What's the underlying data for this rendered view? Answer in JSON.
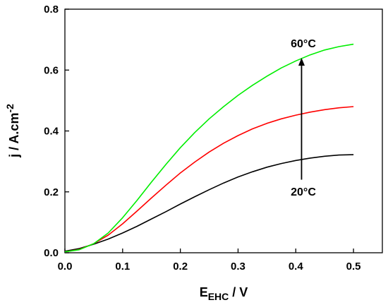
{
  "chart_data": {
    "type": "line",
    "title": "",
    "xlabel": {
      "main": "E",
      "sub": "EHC",
      "tail": " / V"
    },
    "ylabel": {
      "main": "j / A.cm",
      "sup": "-2"
    },
    "xlim": [
      0,
      0.55
    ],
    "ylim": [
      0,
      0.8
    ],
    "xticks": [
      0.0,
      0.1,
      0.2,
      0.3,
      0.4,
      0.5
    ],
    "xtick_labels": [
      "0.0",
      "0.1",
      "0.2",
      "0.3",
      "0.4",
      "0.5"
    ],
    "yticks": [
      0.0,
      0.2,
      0.4,
      0.6,
      0.8
    ],
    "ytick_labels": [
      "0.0",
      "0.2",
      "0.4",
      "0.6",
      "0.8"
    ],
    "grid": false,
    "series": [
      {
        "color": "#000000",
        "x": [
          0.0,
          0.025,
          0.05,
          0.075,
          0.1,
          0.125,
          0.15,
          0.175,
          0.2,
          0.225,
          0.25,
          0.275,
          0.3,
          0.325,
          0.35,
          0.375,
          0.4,
          0.425,
          0.45,
          0.475,
          0.5
        ],
        "y": [
          0.005,
          0.014,
          0.028,
          0.045,
          0.065,
          0.087,
          0.111,
          0.135,
          0.16,
          0.184,
          0.207,
          0.229,
          0.249,
          0.266,
          0.281,
          0.293,
          0.303,
          0.311,
          0.317,
          0.321,
          0.322
        ]
      },
      {
        "color": "#ff0000",
        "x": [
          0.0,
          0.025,
          0.05,
          0.075,
          0.1,
          0.125,
          0.15,
          0.175,
          0.2,
          0.225,
          0.25,
          0.275,
          0.3,
          0.325,
          0.35,
          0.375,
          0.4,
          0.425,
          0.45,
          0.475,
          0.5
        ],
        "y": [
          0.003,
          0.011,
          0.03,
          0.058,
          0.095,
          0.137,
          0.18,
          0.222,
          0.262,
          0.298,
          0.331,
          0.36,
          0.385,
          0.407,
          0.425,
          0.44,
          0.452,
          0.462,
          0.47,
          0.476,
          0.48
        ]
      },
      {
        "color": "#00ee00",
        "x": [
          0.0,
          0.025,
          0.05,
          0.075,
          0.1,
          0.125,
          0.15,
          0.175,
          0.2,
          0.225,
          0.25,
          0.275,
          0.3,
          0.325,
          0.35,
          0.375,
          0.4,
          0.425,
          0.45,
          0.475,
          0.5
        ],
        "y": [
          0.003,
          0.01,
          0.03,
          0.065,
          0.115,
          0.172,
          0.232,
          0.29,
          0.345,
          0.395,
          0.44,
          0.48,
          0.517,
          0.55,
          0.58,
          0.607,
          0.63,
          0.65,
          0.666,
          0.677,
          0.685
        ]
      }
    ],
    "annotations": {
      "top_label": "60°C",
      "bottom_label": "20°C",
      "arrow": {
        "x": 0.41,
        "y_from": 0.24,
        "y_to": 0.64
      }
    }
  }
}
